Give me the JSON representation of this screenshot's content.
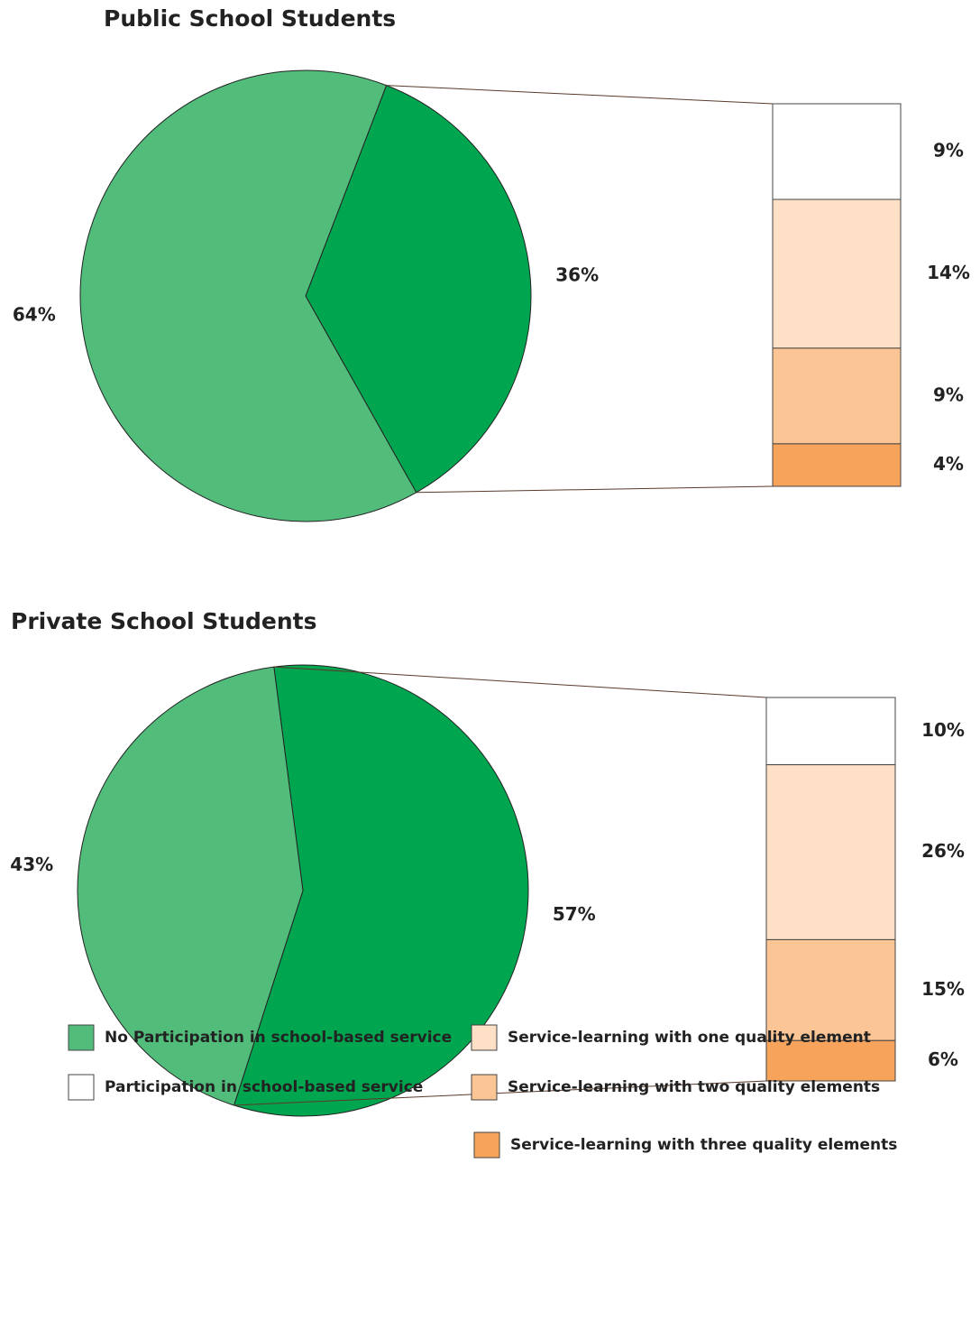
{
  "chart_data": [
    {
      "type": "pie-bar",
      "title": "Public School Students",
      "pie_values": [
        36,
        64
      ],
      "pie_value_labels": [
        "36%",
        "64%"
      ],
      "pie_colors": [
        "#00a64f",
        "#52bd7b"
      ],
      "bar_values": [
        9,
        14,
        9,
        4
      ],
      "bar_value_labels": [
        "9%",
        "14%",
        "9%",
        "4%"
      ],
      "bar_colors": [
        "#ffffff",
        "#fde0c5",
        "#fbc595",
        "#f7a35c"
      ]
    },
    {
      "type": "pie-bar",
      "title": "Private School Students",
      "pie_values": [
        57,
        43
      ],
      "pie_value_labels": [
        "57%",
        "43%"
      ],
      "pie_colors": [
        "#00a64f",
        "#52bd7b"
      ],
      "bar_values": [
        10,
        26,
        15,
        6
      ],
      "bar_value_labels": [
        "10%",
        "26%",
        "15%",
        "6%"
      ],
      "bar_colors": [
        "#ffffff",
        "#fde0c5",
        "#fbc595",
        "#f7a35c"
      ]
    }
  ],
  "legend": [
    {
      "name": "No Participation in school-based service",
      "color": "#52bd7b"
    },
    {
      "name": "Participation in school-based service",
      "color": "#ffffff"
    },
    {
      "name": "Service-learning with one quality element",
      "color": "#fde0c5"
    },
    {
      "name": "Service-learning with two quality elements",
      "color": "#fbc595"
    },
    {
      "name": "Service-learning with three quality elements",
      "color": "#f7a35c"
    }
  ]
}
